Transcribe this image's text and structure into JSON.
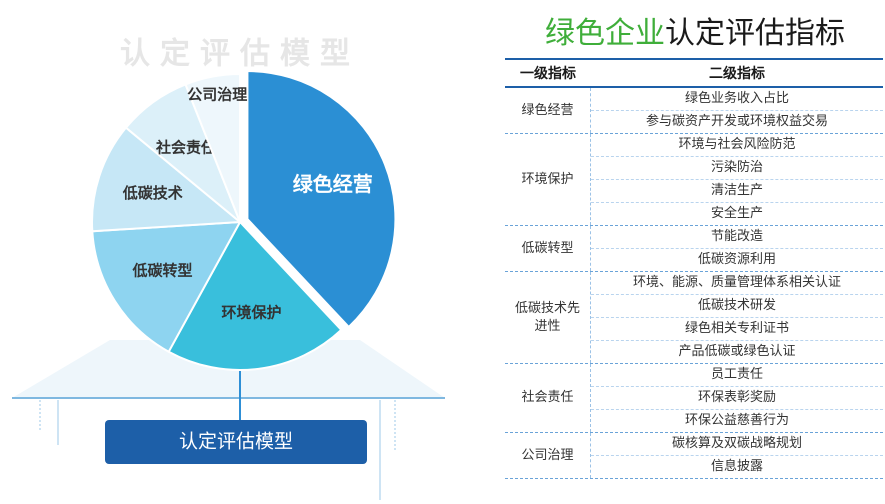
{
  "model_title": "认定评估模型",
  "button_label": "认定评估模型",
  "title_highlight": "绿色企业",
  "title_rest": "认定评估指标",
  "chart_data": {
    "type": "pie",
    "categories": [
      "绿色经营",
      "环境保护",
      "低碳转型",
      "低碳技术",
      "社会责任",
      "公司治理"
    ],
    "values": [
      38,
      20,
      16,
      12,
      8,
      6
    ],
    "colors": [
      "#2b8fd4",
      "#39bfdc",
      "#8ed4f0",
      "#c6e7f6",
      "#dcf0f9",
      "#eef7fc"
    ],
    "label_colors": [
      "#ffffff",
      "#333333",
      "#333333",
      "#333333",
      "#333333",
      "#333333"
    ]
  },
  "table": {
    "headers": [
      "一级指标",
      "二级指标"
    ],
    "groups": [
      {
        "name": "绿色经营",
        "items": [
          "绿色业务收入占比",
          "参与碳资产开发或环境权益交易"
        ]
      },
      {
        "name": "环境保护",
        "items": [
          "环境与社会风险防范",
          "污染防治",
          "清洁生产",
          "安全生产"
        ]
      },
      {
        "name": "低碳转型",
        "items": [
          "节能改造",
          "低碳资源利用"
        ]
      },
      {
        "name": "低碳技术先进性",
        "items": [
          "环境、能源、质量管理体系相关认证",
          "低碳技术研发",
          "绿色相关专利证书",
          "产品低碳或绿色认证"
        ]
      },
      {
        "name": "社会责任",
        "items": [
          "员工责任",
          "环保表彰奖励",
          "环保公益慈善行为"
        ]
      },
      {
        "name": "公司治理",
        "items": [
          "碳核算及双碳战略规划",
          "信息披露"
        ]
      }
    ]
  }
}
